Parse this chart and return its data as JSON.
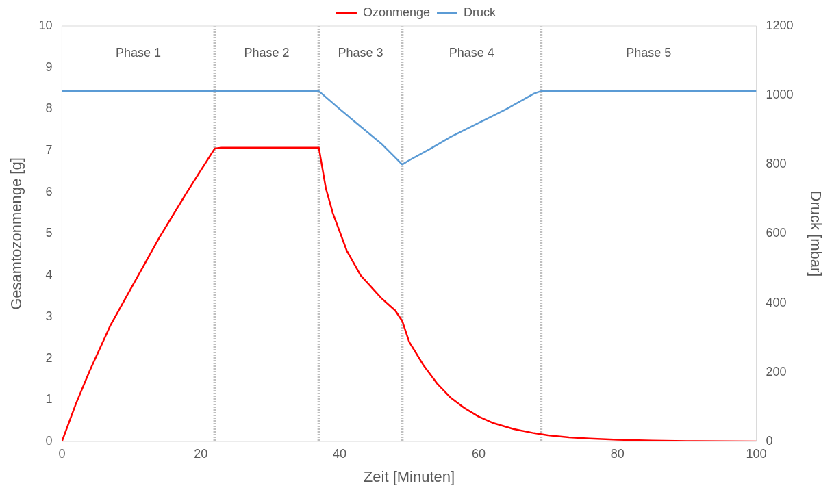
{
  "chart_data": {
    "type": "line",
    "xlabel": "Zeit [Minuten]",
    "ylabel": "Gesamtozonmenge [g]",
    "y2label": "Druck [mbar]",
    "xlim": [
      0,
      100
    ],
    "xticks": [
      0,
      20,
      40,
      60,
      80,
      100
    ],
    "ylim": [
      0,
      10
    ],
    "yticks": [
      0,
      1,
      2,
      3,
      4,
      5,
      6,
      7,
      8,
      9,
      10
    ],
    "y2lim": [
      0,
      1200
    ],
    "y2ticks": [
      0,
      200,
      400,
      600,
      800,
      1000,
      1200
    ],
    "grid": false,
    "legend": "top",
    "marker": "none",
    "line_style": "solid",
    "series": [
      {
        "name": "Ozonmenge",
        "color": "#ff0000",
        "x": [
          0,
          2,
          4,
          7,
          10,
          14,
          18,
          22,
          23,
          37,
          38,
          39,
          41,
          43,
          46,
          48,
          49,
          50,
          52,
          54,
          56,
          58,
          60,
          62,
          65,
          68,
          70,
          73,
          76,
          80,
          85,
          90,
          100
        ],
        "values": [
          0,
          0.9,
          1.7,
          2.8,
          3.7,
          4.9,
          6.0,
          7.05,
          7.07,
          7.07,
          6.1,
          5.5,
          4.6,
          4.0,
          3.45,
          3.15,
          2.9,
          2.4,
          1.85,
          1.4,
          1.05,
          0.8,
          0.6,
          0.45,
          0.3,
          0.2,
          0.15,
          0.1,
          0.07,
          0.04,
          0.02,
          0.01,
          0
        ]
      },
      {
        "name": "Druck",
        "color": "#5b9bd5",
        "axis": "y2",
        "x": [
          0,
          37,
          40,
          43,
          46,
          48,
          49,
          50,
          53,
          56,
          60,
          64,
          68,
          69,
          100
        ],
        "values": [
          1012,
          1012,
          960,
          910,
          860,
          820,
          800,
          812,
          845,
          880,
          920,
          960,
          1005,
          1012,
          1012
        ]
      }
    ],
    "ref_lines": [
      {
        "axis": "x",
        "value": 22,
        "color": "#bfbfbf",
        "line_style": "dotted"
      },
      {
        "axis": "x",
        "value": 37,
        "color": "#bfbfbf",
        "line_style": "dotted"
      },
      {
        "axis": "x",
        "value": 49,
        "color": "#bfbfbf",
        "line_style": "dotted"
      },
      {
        "axis": "x",
        "value": 69,
        "color": "#bfbfbf",
        "line_style": "dotted"
      }
    ],
    "annotations": [
      "Phase 1",
      "Phase 2",
      "Phase 3",
      "Phase 4",
      "Phase 5"
    ]
  }
}
